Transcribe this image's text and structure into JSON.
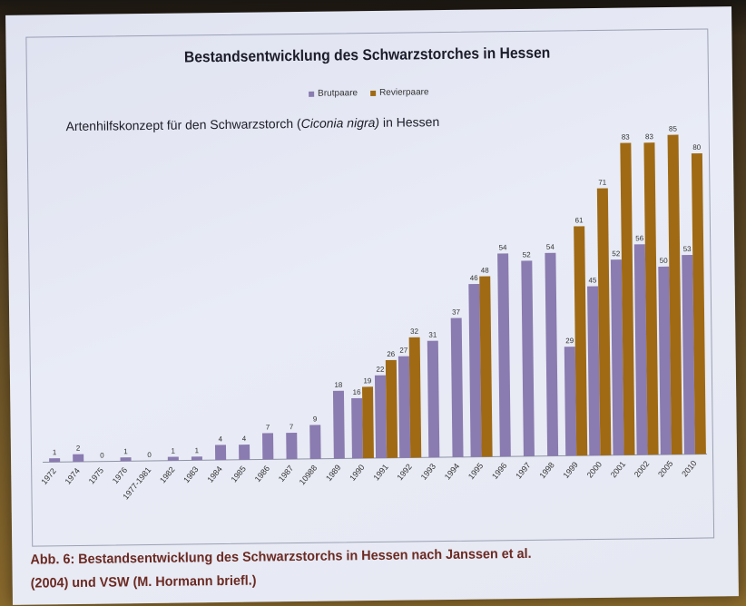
{
  "colors": {
    "brutpaare": "#8a7bb0",
    "revierpaare": "#a06a14"
  },
  "caption": {
    "line1": "Abb. 6: Bestandsentwicklung des Schwarzstorchs in Hessen nach Janssen et al.",
    "line2": "(2004) und VSW (M. Hormann briefl.)"
  },
  "chart_data": {
    "type": "bar",
    "title": "Bestandsentwicklung des Schwarzstorches in Hessen",
    "subtitle": {
      "prefix": "Artenhilfskonzept für den Schwarzstorch (",
      "species": "Ciconia nigra)",
      "suffix": " in Hessen"
    },
    "legend_position": "top-center",
    "categories": [
      "1972",
      "1974",
      "1975",
      "1976",
      "1977-1981",
      "1982",
      "1983",
      "1984",
      "1985",
      "1986",
      "1987",
      "10988",
      "1989",
      "1990",
      "1991",
      "1992",
      "1993",
      "1994",
      "1995",
      "1996",
      "1997",
      "1998",
      "1999",
      "2000",
      "2001",
      "2002",
      "2005",
      "2010"
    ],
    "series": [
      {
        "name": "Brutpaare",
        "values": [
          1,
          2,
          0,
          1,
          0,
          1,
          1,
          4,
          4,
          7,
          7,
          9,
          18,
          16,
          22,
          27,
          31,
          37,
          46,
          54,
          52,
          54,
          29,
          45,
          52,
          56,
          50,
          53
        ]
      },
      {
        "name": "Revierpaare",
        "values": [
          null,
          null,
          null,
          null,
          null,
          null,
          null,
          null,
          null,
          null,
          null,
          null,
          null,
          19,
          26,
          32,
          null,
          null,
          48,
          null,
          null,
          null,
          61,
          71,
          83,
          83,
          85,
          80
        ]
      }
    ],
    "ylim": [
      0,
      90
    ]
  }
}
